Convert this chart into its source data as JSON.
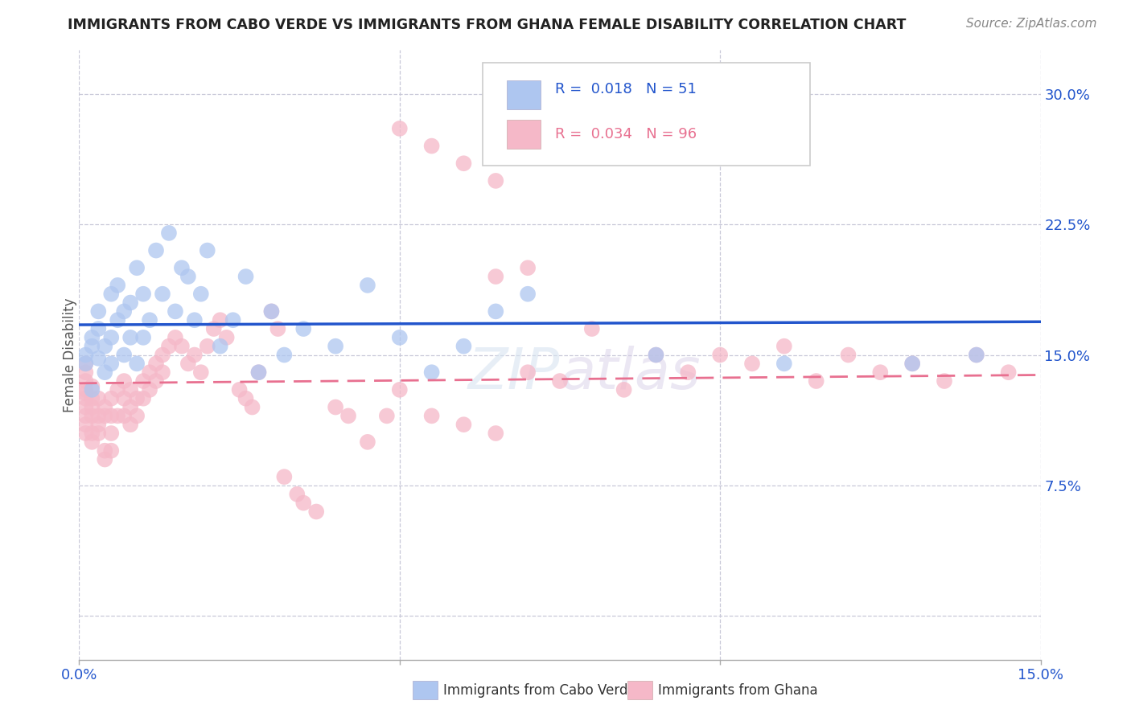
{
  "title": "IMMIGRANTS FROM CABO VERDE VS IMMIGRANTS FROM GHANA FEMALE DISABILITY CORRELATION CHART",
  "source": "Source: ZipAtlas.com",
  "ylabel": "Female Disability",
  "xlim": [
    0.0,
    0.15
  ],
  "ylim": [
    -0.025,
    0.325
  ],
  "background_color": "#ffffff",
  "cabo_verde_color": "#aec6f0",
  "ghana_color": "#f5b8c8",
  "cabo_verde_line_color": "#2255cc",
  "ghana_line_color": "#e87090",
  "r_cabo_verde": 0.018,
  "n_cabo_verde": 51,
  "r_ghana": 0.034,
  "n_ghana": 96,
  "cabo_verde_x": [
    0.001,
    0.001,
    0.002,
    0.002,
    0.002,
    0.003,
    0.003,
    0.003,
    0.004,
    0.004,
    0.005,
    0.005,
    0.005,
    0.006,
    0.006,
    0.007,
    0.007,
    0.008,
    0.008,
    0.009,
    0.009,
    0.01,
    0.01,
    0.011,
    0.012,
    0.013,
    0.014,
    0.015,
    0.016,
    0.017,
    0.018,
    0.019,
    0.02,
    0.022,
    0.024,
    0.026,
    0.028,
    0.03,
    0.032,
    0.035,
    0.04,
    0.045,
    0.05,
    0.055,
    0.06,
    0.065,
    0.07,
    0.09,
    0.11,
    0.13,
    0.14
  ],
  "cabo_verde_y": [
    0.145,
    0.15,
    0.155,
    0.16,
    0.13,
    0.148,
    0.165,
    0.175,
    0.14,
    0.155,
    0.145,
    0.16,
    0.185,
    0.17,
    0.19,
    0.15,
    0.175,
    0.16,
    0.18,
    0.145,
    0.2,
    0.16,
    0.185,
    0.17,
    0.21,
    0.185,
    0.22,
    0.175,
    0.2,
    0.195,
    0.17,
    0.185,
    0.21,
    0.155,
    0.17,
    0.195,
    0.14,
    0.175,
    0.15,
    0.165,
    0.155,
    0.19,
    0.16,
    0.14,
    0.155,
    0.175,
    0.185,
    0.15,
    0.145,
    0.145,
    0.15
  ],
  "ghana_x": [
    0.001,
    0.001,
    0.001,
    0.001,
    0.001,
    0.001,
    0.001,
    0.001,
    0.001,
    0.001,
    0.002,
    0.002,
    0.002,
    0.002,
    0.002,
    0.002,
    0.003,
    0.003,
    0.003,
    0.003,
    0.004,
    0.004,
    0.004,
    0.004,
    0.005,
    0.005,
    0.005,
    0.005,
    0.006,
    0.006,
    0.007,
    0.007,
    0.007,
    0.008,
    0.008,
    0.008,
    0.009,
    0.009,
    0.01,
    0.01,
    0.011,
    0.011,
    0.012,
    0.012,
    0.013,
    0.013,
    0.014,
    0.015,
    0.016,
    0.017,
    0.018,
    0.019,
    0.02,
    0.021,
    0.022,
    0.023,
    0.025,
    0.026,
    0.027,
    0.028,
    0.03,
    0.031,
    0.032,
    0.034,
    0.035,
    0.037,
    0.04,
    0.042,
    0.045,
    0.048,
    0.05,
    0.055,
    0.06,
    0.065,
    0.07,
    0.075,
    0.08,
    0.085,
    0.09,
    0.095,
    0.1,
    0.105,
    0.11,
    0.115,
    0.12,
    0.125,
    0.13,
    0.135,
    0.14,
    0.145,
    0.05,
    0.055,
    0.06,
    0.065,
    0.065,
    0.07
  ],
  "ghana_y": [
    0.13,
    0.125,
    0.14,
    0.145,
    0.135,
    0.128,
    0.12,
    0.115,
    0.105,
    0.11,
    0.132,
    0.125,
    0.12,
    0.115,
    0.105,
    0.1,
    0.125,
    0.115,
    0.11,
    0.105,
    0.12,
    0.115,
    0.095,
    0.09,
    0.125,
    0.115,
    0.105,
    0.095,
    0.13,
    0.115,
    0.135,
    0.125,
    0.115,
    0.13,
    0.12,
    0.11,
    0.125,
    0.115,
    0.135,
    0.125,
    0.14,
    0.13,
    0.145,
    0.135,
    0.15,
    0.14,
    0.155,
    0.16,
    0.155,
    0.145,
    0.15,
    0.14,
    0.155,
    0.165,
    0.17,
    0.16,
    0.13,
    0.125,
    0.12,
    0.14,
    0.175,
    0.165,
    0.08,
    0.07,
    0.065,
    0.06,
    0.12,
    0.115,
    0.1,
    0.115,
    0.13,
    0.115,
    0.11,
    0.105,
    0.14,
    0.135,
    0.165,
    0.13,
    0.15,
    0.14,
    0.15,
    0.145,
    0.155,
    0.135,
    0.15,
    0.14,
    0.145,
    0.135,
    0.15,
    0.14,
    0.28,
    0.27,
    0.26,
    0.25,
    0.195,
    0.2
  ]
}
